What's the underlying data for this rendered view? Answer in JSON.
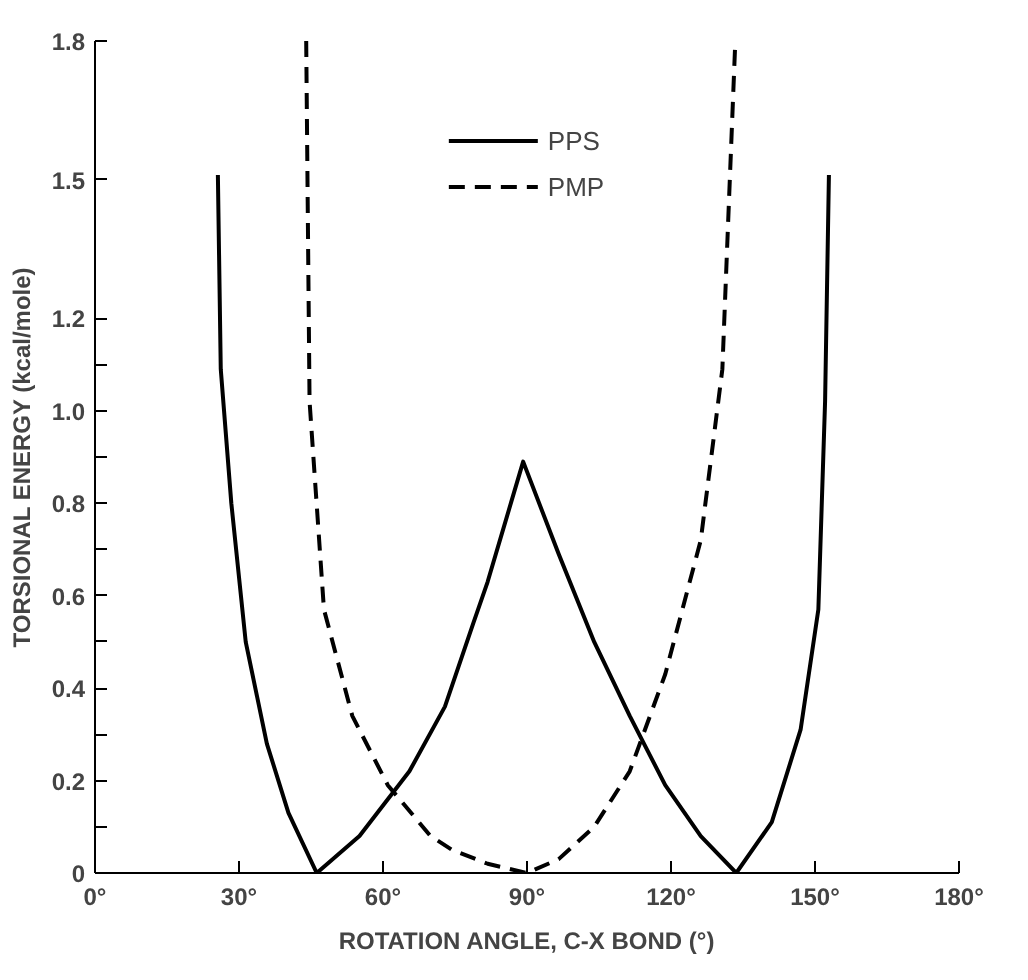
{
  "chart_data": {
    "type": "line",
    "xlabel": "ROTATION ANGLE, C-X BOND (°)",
    "ylabel": "TORSIONAL ENERGY (kcal/mole)",
    "xlim": [
      0,
      180
    ],
    "ylim": [
      0,
      1.8
    ],
    "xticks": [
      {
        "value": 0,
        "label": "0°"
      },
      {
        "value": 30,
        "label": "30°"
      },
      {
        "value": 60,
        "label": "60°"
      },
      {
        "value": 90,
        "label": "90°"
      },
      {
        "value": 120,
        "label": "120°"
      },
      {
        "value": 150,
        "label": "150°"
      },
      {
        "value": 180,
        "label": "180°"
      }
    ],
    "yticks": [
      0,
      {
        "value": 0.1,
        "label": null
      },
      0.2,
      {
        "value": 0.3,
        "label": null
      },
      0.4,
      {
        "value": 0.5,
        "label": null
      },
      0.6,
      {
        "value": 0.7,
        "label": null
      },
      0.8,
      {
        "value": 0.9,
        "label": null
      },
      {
        "value": 1.0,
        "label": "1.0"
      },
      {
        "value": 1.1,
        "label": null
      },
      1.2,
      1.5,
      1.8
    ],
    "grid": false,
    "legend": "top",
    "marker": "none",
    "series": [
      {
        "name": "PPS",
        "color": "#000000",
        "line_style": "solid",
        "x": [
          25.6,
          26.2,
          28.4,
          31.4,
          35.8,
          40.3,
          46.2,
          55.1,
          65.5,
          72.9,
          78.8,
          81.8,
          89.2,
          96.6,
          104,
          111.4,
          118.8,
          126.2,
          133.6,
          141,
          147,
          150.7,
          152.1,
          152.9
        ],
        "values": [
          1.51,
          1.09,
          0.8,
          0.5,
          0.28,
          0.13,
          0,
          0.08,
          0.22,
          0.36,
          0.54,
          0.63,
          0.89,
          0.69,
          0.5,
          0.34,
          0.19,
          0.08,
          0,
          0.11,
          0.31,
          0.57,
          1.02,
          1.51
        ]
      },
      {
        "name": "PMP",
        "color": "#000000",
        "line_style": "dashed",
        "x": [
          44,
          44.7,
          47.7,
          53.6,
          61,
          69.9,
          74.4,
          81.8,
          90,
          96.6,
          104,
          111.4,
          118.8,
          126.2,
          130.7,
          132.1,
          133.4
        ],
        "values": [
          1.8,
          1.02,
          0.57,
          0.34,
          0.19,
          0.08,
          0.05,
          0.02,
          0,
          0.03,
          0.1,
          0.22,
          0.43,
          0.72,
          1.09,
          1.46,
          1.8
        ]
      }
    ]
  }
}
